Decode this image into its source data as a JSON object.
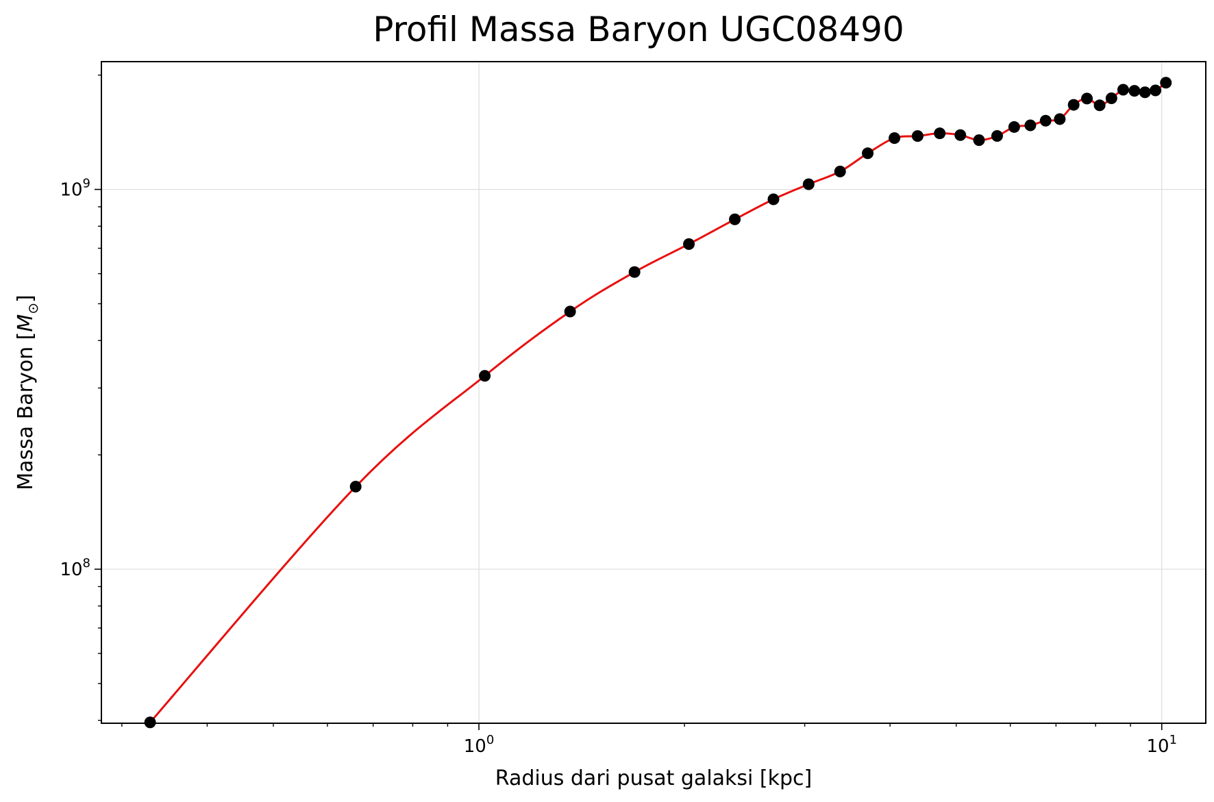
{
  "chart_data": {
    "type": "line",
    "title": "Profil Massa Baryon UGC08490",
    "xlabel": "Radius dari pusat galaksi [kpc]",
    "ylabel_main": "Massa Baryon [",
    "ylabel_symbol": "M",
    "ylabel_sub": "⊙",
    "ylabel_close": "]",
    "xscale": "log",
    "yscale": "log",
    "xlim": [
      0.28,
      11.6
    ],
    "ylim": [
      39300000,
      2170000000
    ],
    "grid": true,
    "x_ticks": [
      {
        "value": 1,
        "base": "10",
        "exp": "0"
      },
      {
        "value": 10,
        "base": "10",
        "exp": "1"
      }
    ],
    "y_ticks": [
      {
        "value": 100000000,
        "base": "10",
        "exp": "8"
      },
      {
        "value": 1000000000,
        "base": "10",
        "exp": "9"
      }
    ],
    "colors": {
      "points": "#000000",
      "line": "#e8100f",
      "grid": "#dcdcdc"
    },
    "series": [
      {
        "marker": "circle",
        "x": [
          0.33,
          0.66,
          1.02,
          1.36,
          1.69,
          2.03,
          2.37,
          2.7,
          3.04,
          3.38,
          3.71,
          4.06,
          4.39,
          4.73,
          5.07,
          5.4,
          5.74,
          6.08,
          6.42,
          6.76,
          7.09,
          7.43,
          7.77,
          8.11,
          8.44,
          8.78,
          9.12,
          9.45,
          9.79,
          10.14
        ],
        "y": [
          39500000,
          165000000,
          323000000,
          477000000,
          606000000,
          718000000,
          834000000,
          942000000,
          1032000000,
          1115000000,
          1245000000,
          1365000000,
          1382000000,
          1405000000,
          1390000000,
          1348000000,
          1383000000,
          1460000000,
          1475000000,
          1517000000,
          1532000000,
          1670000000,
          1735000000,
          1665000000,
          1738000000,
          1830000000,
          1818000000,
          1802000000,
          1823000000,
          1910000000
        ]
      }
    ]
  }
}
